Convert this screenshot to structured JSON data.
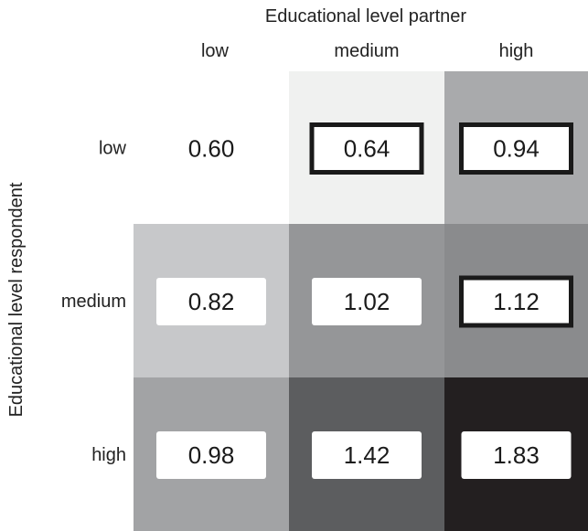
{
  "chart_data": {
    "type": "heatmap",
    "xlabel": "Educational level partner",
    "ylabel": "Educational level respondent",
    "x_categories": [
      "low",
      "medium",
      "high"
    ],
    "y_categories": [
      "low",
      "medium",
      "high"
    ],
    "values": [
      [
        0.6,
        0.64,
        0.94
      ],
      [
        0.82,
        1.02,
        1.12
      ],
      [
        0.98,
        1.42,
        1.83
      ]
    ],
    "value_labels": [
      [
        "0.60",
        "0.64",
        "0.94"
      ],
      [
        "0.82",
        "1.02",
        "1.12"
      ],
      [
        "0.98",
        "1.42",
        "1.83"
      ]
    ],
    "cell_colors": [
      [
        "#ffffff",
        "#f0f1f0",
        "#a9aaac"
      ],
      [
        "#c7c8ca",
        "#959698",
        "#8a8b8d"
      ],
      [
        "#a2a3a5",
        "#5c5d5f",
        "#231f20"
      ]
    ],
    "value_box": [
      [
        "none",
        "thick-border",
        "thick-border"
      ],
      [
        "white",
        "white",
        "thick-border"
      ],
      [
        "white",
        "white",
        "white"
      ]
    ]
  }
}
